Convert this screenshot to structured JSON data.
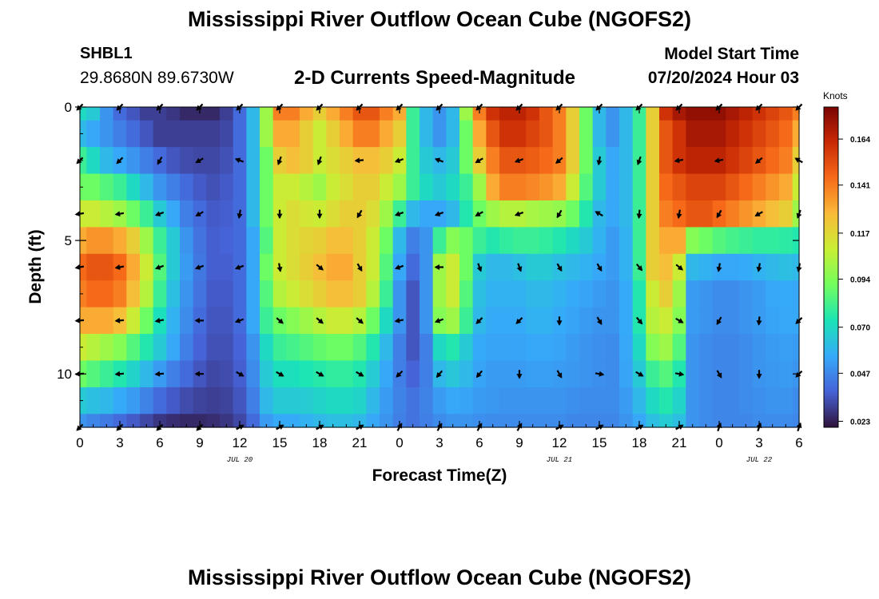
{
  "header": {
    "title": "Mississippi River Outflow Ocean Cube (NGOFS2)",
    "station": "SHBL1",
    "coordinates": "29.8680N  89.6730W",
    "subtitle": "2-D Currents Speed-Magnitude",
    "model_start_label": "Model Start Time",
    "model_start_value": "07/20/2024 Hour 03"
  },
  "footer": {
    "title": "Mississippi River Outflow Ocean Cube (NGOFS2)"
  },
  "chart_data": {
    "type": "heatmap",
    "xlabel": "Forecast Time(Z)",
    "ylabel": "Depth (ft)",
    "x_tick_labels": [
      "0",
      "3",
      "6",
      "9",
      "12",
      "15",
      "18",
      "21",
      "0",
      "3",
      "6",
      "9",
      "12",
      "15",
      "18",
      "21",
      "0",
      "3",
      "6"
    ],
    "x_range_hours": [
      0,
      54
    ],
    "date_labels": [
      {
        "label": "JUL 20",
        "hour": 12
      },
      {
        "label": "JUL 21",
        "hour": 36
      },
      {
        "label": "JUL 22",
        "hour": 51
      }
    ],
    "y_ticks": [
      0,
      5,
      10
    ],
    "y_range_ft": [
      0,
      12
    ],
    "colorbar": {
      "unit": "Knots",
      "tick_values": [
        "0.023",
        "0.047",
        "0.070",
        "0.094",
        "0.117",
        "0.141",
        "0.164"
      ],
      "range": [
        0.02,
        0.18
      ],
      "colormap": [
        "#30123b",
        "#4662d7",
        "#36aaf9",
        "#1ae4b6",
        "#72fe5e",
        "#c8ef34",
        "#faba39",
        "#f66b19",
        "#ca2a04",
        "#7a0403"
      ]
    },
    "depth_levels_ft": [
      0,
      1,
      2,
      3,
      4,
      5,
      6,
      7,
      8,
      9,
      10,
      11,
      12
    ],
    "hours": [
      0,
      1,
      2,
      3,
      4,
      5,
      6,
      7,
      8,
      9,
      10,
      11,
      12,
      13,
      14,
      15,
      16,
      17,
      18,
      19,
      20,
      21,
      22,
      23,
      24,
      25,
      26,
      27,
      28,
      29,
      30,
      31,
      32,
      33,
      34,
      35,
      36,
      37,
      38,
      39,
      40,
      41,
      42,
      43,
      44,
      45,
      46,
      47,
      48,
      49,
      50,
      51,
      52,
      53,
      54
    ],
    "speed_knots": [
      [
        0.07,
        0.065,
        0.05,
        0.04,
        0.035,
        0.03,
        0.03,
        0.028,
        0.025,
        0.025,
        0.025,
        0.03,
        0.04,
        0.06,
        0.1,
        0.14,
        0.14,
        0.13,
        0.12,
        0.13,
        0.14,
        0.15,
        0.15,
        0.14,
        0.13,
        0.08,
        0.06,
        0.05,
        0.06,
        0.1,
        0.14,
        0.16,
        0.165,
        0.165,
        0.16,
        0.15,
        0.14,
        0.12,
        0.09,
        0.06,
        0.05,
        0.06,
        0.08,
        0.12,
        0.16,
        0.17,
        0.175,
        0.175,
        0.175,
        0.17,
        0.165,
        0.16,
        0.155,
        0.15,
        0.14
      ],
      [
        0.06,
        0.055,
        0.05,
        0.045,
        0.04,
        0.035,
        0.03,
        0.03,
        0.03,
        0.03,
        0.03,
        0.032,
        0.04,
        0.06,
        0.1,
        0.13,
        0.13,
        0.12,
        0.11,
        0.12,
        0.13,
        0.14,
        0.14,
        0.13,
        0.12,
        0.08,
        0.06,
        0.05,
        0.06,
        0.09,
        0.13,
        0.15,
        0.16,
        0.16,
        0.155,
        0.15,
        0.14,
        0.12,
        0.09,
        0.06,
        0.05,
        0.06,
        0.08,
        0.12,
        0.15,
        0.16,
        0.17,
        0.17,
        0.17,
        0.165,
        0.16,
        0.155,
        0.15,
        0.145,
        0.13
      ],
      [
        0.08,
        0.07,
        0.06,
        0.055,
        0.05,
        0.045,
        0.04,
        0.035,
        0.033,
        0.032,
        0.032,
        0.034,
        0.04,
        0.06,
        0.09,
        0.12,
        0.125,
        0.12,
        0.11,
        0.115,
        0.12,
        0.125,
        0.125,
        0.12,
        0.11,
        0.08,
        0.065,
        0.06,
        0.065,
        0.09,
        0.12,
        0.14,
        0.15,
        0.15,
        0.148,
        0.145,
        0.14,
        0.12,
        0.09,
        0.065,
        0.055,
        0.06,
        0.08,
        0.12,
        0.15,
        0.16,
        0.165,
        0.165,
        0.165,
        0.16,
        0.155,
        0.15,
        0.145,
        0.14,
        0.12
      ],
      [
        0.09,
        0.09,
        0.085,
        0.08,
        0.07,
        0.06,
        0.05,
        0.045,
        0.04,
        0.036,
        0.034,
        0.036,
        0.04,
        0.06,
        0.09,
        0.11,
        0.11,
        0.105,
        0.1,
        0.11,
        0.115,
        0.12,
        0.12,
        0.11,
        0.1,
        0.08,
        0.07,
        0.065,
        0.07,
        0.08,
        0.1,
        0.13,
        0.14,
        0.14,
        0.138,
        0.135,
        0.13,
        0.11,
        0.085,
        0.065,
        0.055,
        0.06,
        0.08,
        0.12,
        0.145,
        0.15,
        0.155,
        0.155,
        0.155,
        0.15,
        0.145,
        0.14,
        0.135,
        0.13,
        0.11
      ],
      [
        0.11,
        0.11,
        0.105,
        0.1,
        0.09,
        0.08,
        0.065,
        0.055,
        0.045,
        0.04,
        0.036,
        0.037,
        0.04,
        0.06,
        0.09,
        0.11,
        0.115,
        0.112,
        0.11,
        0.115,
        0.12,
        0.12,
        0.115,
        0.1,
        0.08,
        0.06,
        0.055,
        0.055,
        0.06,
        0.075,
        0.09,
        0.1,
        0.105,
        0.105,
        0.102,
        0.1,
        0.098,
        0.09,
        0.075,
        0.06,
        0.055,
        0.06,
        0.08,
        0.12,
        0.14,
        0.145,
        0.15,
        0.15,
        0.145,
        0.14,
        0.135,
        0.13,
        0.125,
        0.12,
        0.1
      ],
      [
        0.13,
        0.135,
        0.135,
        0.13,
        0.12,
        0.1,
        0.08,
        0.065,
        0.05,
        0.042,
        0.037,
        0.038,
        0.04,
        0.055,
        0.085,
        0.11,
        0.115,
        0.118,
        0.12,
        0.125,
        0.125,
        0.12,
        0.11,
        0.09,
        0.06,
        0.045,
        0.05,
        0.08,
        0.095,
        0.09,
        0.08,
        0.075,
        0.078,
        0.08,
        0.08,
        0.078,
        0.075,
        0.07,
        0.065,
        0.058,
        0.052,
        0.058,
        0.08,
        0.12,
        0.13,
        0.13,
        0.095,
        0.09,
        0.085,
        0.082,
        0.08,
        0.078,
        0.078,
        0.077,
        0.075
      ],
      [
        0.145,
        0.15,
        0.15,
        0.145,
        0.13,
        0.11,
        0.085,
        0.065,
        0.052,
        0.043,
        0.037,
        0.037,
        0.04,
        0.055,
        0.09,
        0.11,
        0.115,
        0.12,
        0.125,
        0.13,
        0.13,
        0.12,
        0.11,
        0.085,
        0.055,
        0.04,
        0.05,
        0.1,
        0.11,
        0.09,
        0.065,
        0.06,
        0.06,
        0.062,
        0.065,
        0.065,
        0.062,
        0.06,
        0.058,
        0.055,
        0.052,
        0.058,
        0.08,
        0.12,
        0.125,
        0.11,
        0.06,
        0.058,
        0.055,
        0.055,
        0.056,
        0.058,
        0.06,
        0.062,
        0.06
      ],
      [
        0.14,
        0.145,
        0.145,
        0.14,
        0.125,
        0.105,
        0.08,
        0.062,
        0.05,
        0.042,
        0.036,
        0.036,
        0.04,
        0.055,
        0.085,
        0.105,
        0.11,
        0.115,
        0.12,
        0.125,
        0.125,
        0.12,
        0.105,
        0.08,
        0.05,
        0.035,
        0.05,
        0.1,
        0.11,
        0.085,
        0.062,
        0.058,
        0.058,
        0.058,
        0.06,
        0.06,
        0.058,
        0.056,
        0.054,
        0.052,
        0.05,
        0.056,
        0.075,
        0.11,
        0.12,
        0.1,
        0.052,
        0.05,
        0.048,
        0.048,
        0.05,
        0.052,
        0.055,
        0.056,
        0.055
      ],
      [
        0.13,
        0.13,
        0.13,
        0.125,
        0.11,
        0.09,
        0.072,
        0.058,
        0.048,
        0.04,
        0.035,
        0.035,
        0.04,
        0.055,
        0.08,
        0.09,
        0.095,
        0.1,
        0.105,
        0.11,
        0.11,
        0.105,
        0.09,
        0.07,
        0.05,
        0.035,
        0.05,
        0.095,
        0.1,
        0.08,
        0.06,
        0.056,
        0.056,
        0.056,
        0.058,
        0.058,
        0.056,
        0.054,
        0.052,
        0.05,
        0.05,
        0.056,
        0.075,
        0.105,
        0.11,
        0.095,
        0.052,
        0.05,
        0.048,
        0.048,
        0.05,
        0.052,
        0.054,
        0.055,
        0.055
      ],
      [
        0.11,
        0.105,
        0.1,
        0.095,
        0.085,
        0.075,
        0.065,
        0.055,
        0.045,
        0.038,
        0.034,
        0.034,
        0.038,
        0.05,
        0.07,
        0.08,
        0.082,
        0.085,
        0.088,
        0.09,
        0.09,
        0.085,
        0.075,
        0.06,
        0.045,
        0.035,
        0.045,
        0.07,
        0.075,
        0.065,
        0.056,
        0.054,
        0.054,
        0.054,
        0.055,
        0.055,
        0.054,
        0.052,
        0.05,
        0.049,
        0.048,
        0.055,
        0.07,
        0.095,
        0.1,
        0.085,
        0.05,
        0.048,
        0.047,
        0.047,
        0.048,
        0.05,
        0.052,
        0.053,
        0.052
      ],
      [
        0.09,
        0.085,
        0.08,
        0.075,
        0.068,
        0.06,
        0.052,
        0.045,
        0.04,
        0.035,
        0.032,
        0.033,
        0.037,
        0.048,
        0.065,
        0.072,
        0.072,
        0.074,
        0.076,
        0.078,
        0.078,
        0.075,
        0.066,
        0.055,
        0.045,
        0.038,
        0.045,
        0.06,
        0.064,
        0.06,
        0.054,
        0.052,
        0.052,
        0.052,
        0.053,
        0.053,
        0.052,
        0.051,
        0.05,
        0.049,
        0.048,
        0.054,
        0.065,
        0.08,
        0.085,
        0.075,
        0.05,
        0.048,
        0.047,
        0.047,
        0.048,
        0.05,
        0.051,
        0.052,
        0.05
      ],
      [
        0.065,
        0.062,
        0.06,
        0.056,
        0.052,
        0.046,
        0.04,
        0.036,
        0.033,
        0.031,
        0.03,
        0.031,
        0.035,
        0.045,
        0.06,
        0.065,
        0.065,
        0.066,
        0.068,
        0.07,
        0.07,
        0.068,
        0.06,
        0.052,
        0.046,
        0.042,
        0.046,
        0.052,
        0.055,
        0.054,
        0.052,
        0.051,
        0.05,
        0.05,
        0.05,
        0.05,
        0.05,
        0.049,
        0.048,
        0.048,
        0.048,
        0.052,
        0.06,
        0.07,
        0.075,
        0.068,
        0.05,
        0.048,
        0.047,
        0.047,
        0.048,
        0.049,
        0.05,
        0.05,
        0.048
      ],
      [
        0.05,
        0.047,
        0.044,
        0.04,
        0.036,
        0.032,
        0.028,
        0.026,
        0.025,
        0.025,
        0.026,
        0.028,
        0.032,
        0.04,
        0.052,
        0.056,
        0.056,
        0.058,
        0.06,
        0.062,
        0.062,
        0.06,
        0.055,
        0.05,
        0.045,
        0.042,
        0.045,
        0.048,
        0.05,
        0.05,
        0.049,
        0.048,
        0.048,
        0.048,
        0.048,
        0.048,
        0.048,
        0.047,
        0.047,
        0.047,
        0.047,
        0.05,
        0.055,
        0.062,
        0.066,
        0.062,
        0.05,
        0.048,
        0.047,
        0.047,
        0.047,
        0.048,
        0.048,
        0.048,
        0.047
      ]
    ],
    "direction_vectors_deg": {
      "note_hours": [
        0,
        3,
        6,
        9,
        12,
        15,
        18,
        21,
        24,
        27,
        30,
        33,
        36,
        39,
        42,
        45,
        48,
        51,
        54
      ],
      "depths_ft": [
        0,
        2,
        4,
        6,
        8,
        10,
        12
      ],
      "angle_deg": [
        [
          225,
          225,
          225,
          225,
          225,
          225,
          225,
          225,
          225,
          225,
          225,
          225,
          225,
          225,
          225,
          225,
          225,
          225,
          225
        ],
        [
          225,
          225,
          240,
          210,
          160,
          250,
          250,
          185,
          200,
          160,
          210,
          200,
          220,
          260,
          250,
          190,
          190,
          220,
          150
        ],
        [
          190,
          190,
          200,
          210,
          260,
          270,
          270,
          240,
          200,
          200,
          210,
          200,
          240,
          150,
          265,
          260,
          240,
          210,
          250
        ],
        [
          190,
          190,
          200,
          200,
          200,
          280,
          320,
          300,
          200,
          180,
          290,
          290,
          300,
          300,
          310,
          320,
          260,
          260,
          260
        ],
        [
          185,
          185,
          190,
          180,
          200,
          320,
          320,
          320,
          190,
          200,
          225,
          225,
          270,
          300,
          310,
          330,
          240,
          265,
          225
        ],
        [
          185,
          185,
          185,
          180,
          330,
          330,
          330,
          330,
          225,
          230,
          230,
          270,
          300,
          350,
          330,
          350,
          300,
          270,
          225
        ],
        [
          225,
          225,
          225,
          225,
          30,
          30,
          30,
          30,
          60,
          60,
          60,
          60,
          30,
          30,
          30,
          30,
          70,
          70,
          70
        ]
      ]
    }
  }
}
